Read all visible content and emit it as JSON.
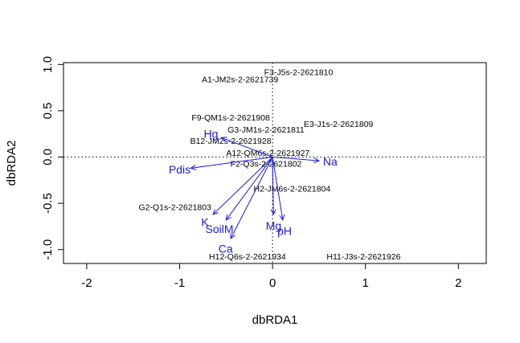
{
  "chart_data": {
    "type": "scatter",
    "xlabel": "dbRDA1",
    "ylabel": "dbRDA2",
    "xlim": [
      -2.25,
      2.3
    ],
    "ylim": [
      -1.15,
      1.02
    ],
    "x_ticks": [
      -2,
      -1,
      0,
      1,
      2
    ],
    "y_ticks": [
      -1.0,
      -0.5,
      0.0,
      0.5,
      1.0
    ],
    "x_tick_labels": [
      "-2",
      "-1",
      "0",
      "1",
      "2"
    ],
    "y_tick_labels": [
      "-1.0",
      "-0.5",
      "0.0",
      "0.5",
      "1.0"
    ],
    "reference_lines": {
      "x": 0,
      "y": 0,
      "style": "dotted"
    },
    "colors": {
      "site_text": "#000000",
      "vector": "#1a1adb"
    },
    "sites": [
      {
        "label": "A1-JM2s-2-2621739",
        "x": -0.35,
        "y": 0.84
      },
      {
        "label": "F3-J5s-2-2621810",
        "x": 0.28,
        "y": 0.92
      },
      {
        "label": "F9-QM1s-2-2621908",
        "x": -0.45,
        "y": 0.43
      },
      {
        "label": "E3-J1s-2-2621809",
        "x": 0.71,
        "y": 0.36
      },
      {
        "label": "G3-JM1s-2-2621811",
        "x": -0.07,
        "y": 0.3
      },
      {
        "label": "B12-JM2s-2-2621928",
        "x": -0.45,
        "y": 0.18
      },
      {
        "label": "A12-QM6s-2-2621927",
        "x": -0.05,
        "y": 0.05
      },
      {
        "label": "F2-Q3s-2-2621802",
        "x": -0.07,
        "y": -0.07
      },
      {
        "label": "H2-JM6s-2-2621804",
        "x": 0.21,
        "y": -0.34
      },
      {
        "label": "G2-Q1s-2-2621803",
        "x": -1.05,
        "y": -0.54
      },
      {
        "label": "H12-Q6s-2-2621934",
        "x": -0.27,
        "y": -1.07
      },
      {
        "label": "H11-J3s-2-2621926",
        "x": 0.98,
        "y": -1.07
      }
    ],
    "vectors": [
      {
        "name": "Hg",
        "x": -0.55,
        "y": 0.21
      },
      {
        "name": "Pdis",
        "x": -0.88,
        "y": -0.12
      },
      {
        "name": "Na",
        "x": 0.5,
        "y": -0.04
      },
      {
        "name": "K",
        "x": -0.64,
        "y": -0.62
      },
      {
        "name": "SoilM",
        "x": -0.5,
        "y": -0.68
      },
      {
        "name": "Ca",
        "x": -0.45,
        "y": -0.88
      },
      {
        "name": "Mg",
        "x": 0.01,
        "y": -0.62
      },
      {
        "name": "pH",
        "x": 0.11,
        "y": -0.68
      }
    ]
  }
}
